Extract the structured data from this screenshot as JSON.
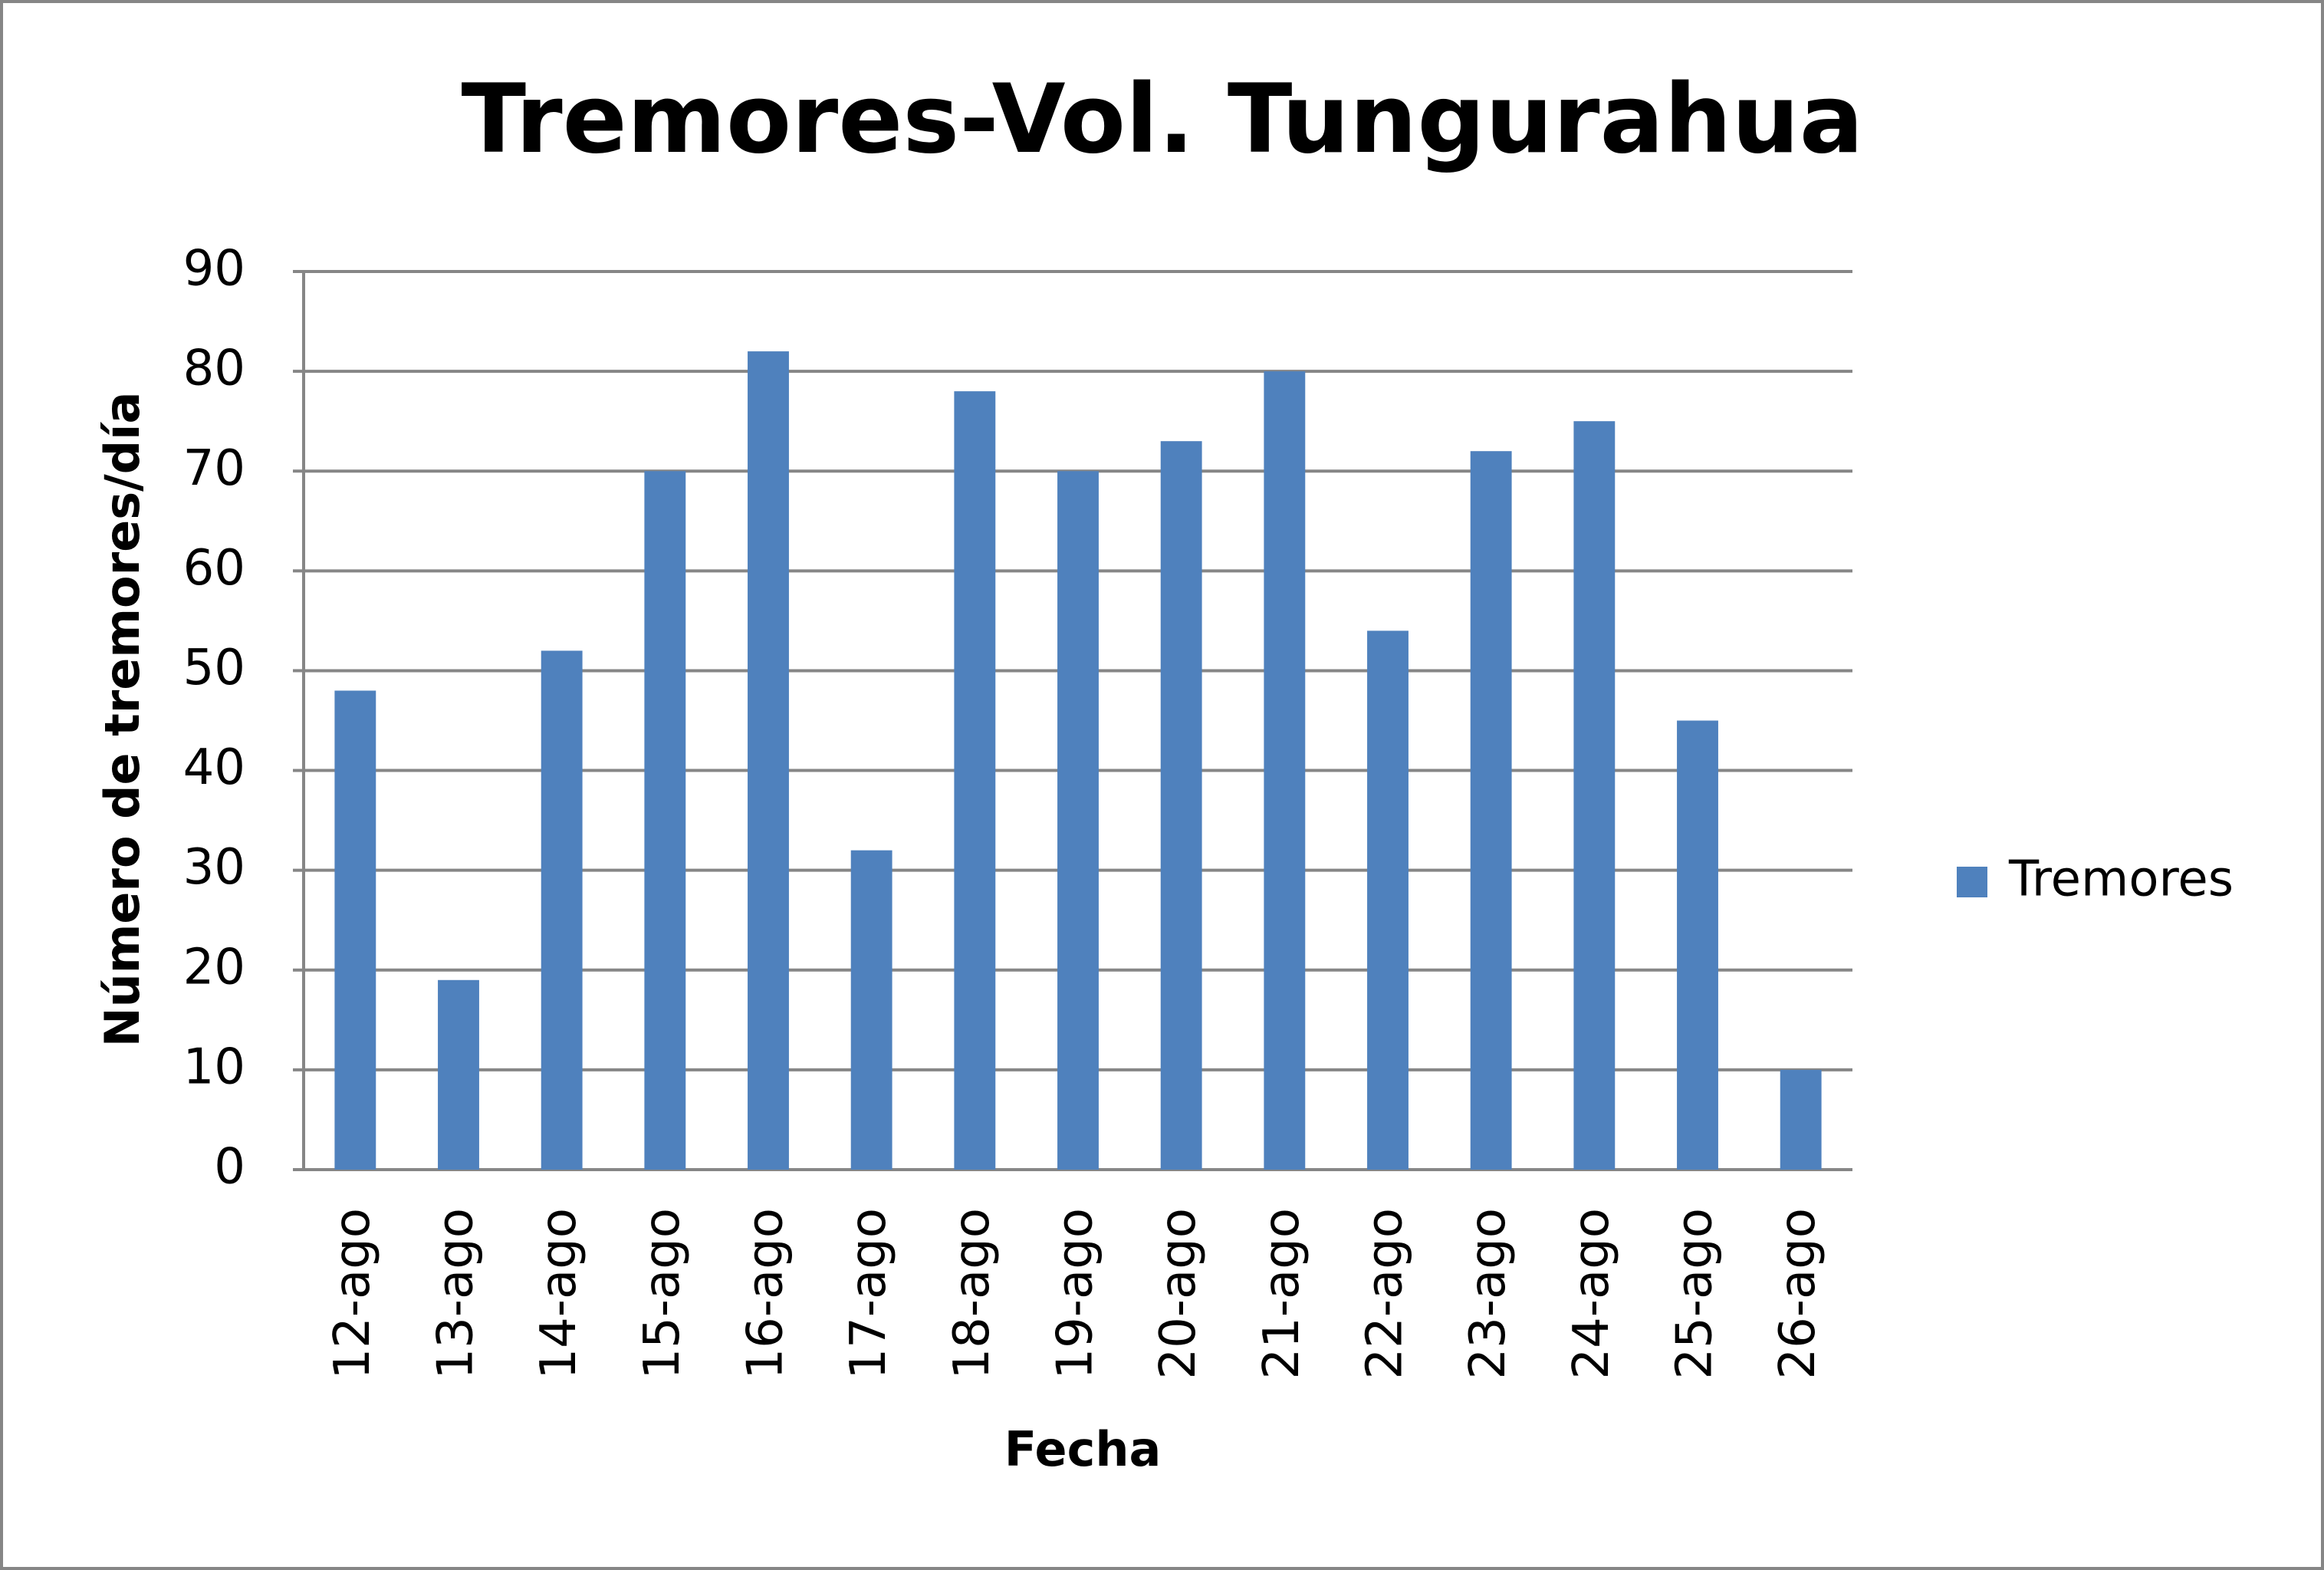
{
  "chart_data": {
    "type": "bar",
    "title": "Tremores-Vol. Tungurahua",
    "x_label": "Fecha",
    "y_label": "Número de tremores/día",
    "categories": [
      "12-ago",
      "13-ago",
      "14-ago",
      "15-ago",
      "16-ago",
      "17-ago",
      "18-ago",
      "19-ago",
      "20-ago",
      "21-ago",
      "22-ago",
      "23-ago",
      "24-ago",
      "25-ago",
      "26-ago"
    ],
    "series": [
      {
        "name": "Tremores",
        "color": "#4f81bd",
        "values": [
          48,
          19,
          52,
          70,
          82,
          32,
          78,
          70,
          73,
          80,
          54,
          72,
          75,
          45,
          10
        ]
      }
    ],
    "ylim": [
      0,
      90
    ],
    "yticks": [
      0,
      10,
      20,
      30,
      40,
      50,
      60,
      70,
      80,
      90
    ],
    "grid": true,
    "legend": "right"
  }
}
